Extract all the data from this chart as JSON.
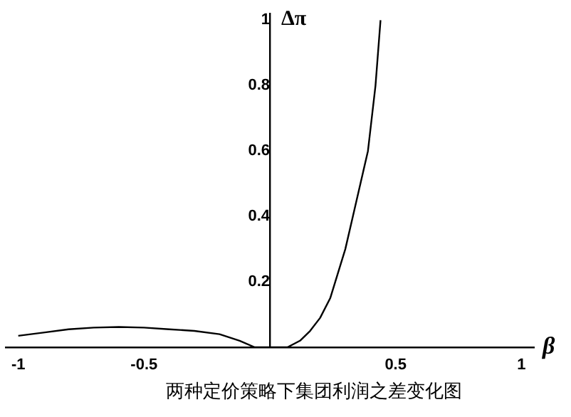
{
  "chart_data": {
    "type": "line",
    "xlabel": "β",
    "ylabel": "Δπ",
    "annotations": [
      "两种定价策略下集团利润之差变化图"
    ],
    "series": [
      {
        "color": "#000000",
        "x": [
          -1,
          -0.9,
          -0.8,
          -0.7,
          -0.6,
          -0.5,
          -0.4,
          -0.3,
          -0.2,
          -0.12,
          -0.06,
          0,
          0.07,
          0.12,
          0.16,
          0.2,
          0.24,
          0.26,
          0.3,
          0.33,
          0.36,
          0.39,
          0.42,
          0.44
        ],
        "values": [
          0.035,
          0.045,
          0.055,
          0.06,
          0.062,
          0.06,
          0.055,
          0.05,
          0.04,
          0.02,
          0,
          0,
          0,
          0.02,
          0.05,
          0.09,
          0.15,
          0.2,
          0.3,
          0.4,
          0.5,
          0.6,
          0.8,
          1
        ]
      }
    ],
    "xlim": [
      -1.05,
      1.05
    ],
    "ylim": [
      0,
      1.02
    ],
    "xticks": [
      -1,
      -0.5,
      0.5,
      1
    ],
    "yticks": [
      0.2,
      0.4,
      0.6,
      0.8,
      1
    ],
    "grid": false,
    "legend": false,
    "marker": "none",
    "line_style": "solid"
  }
}
